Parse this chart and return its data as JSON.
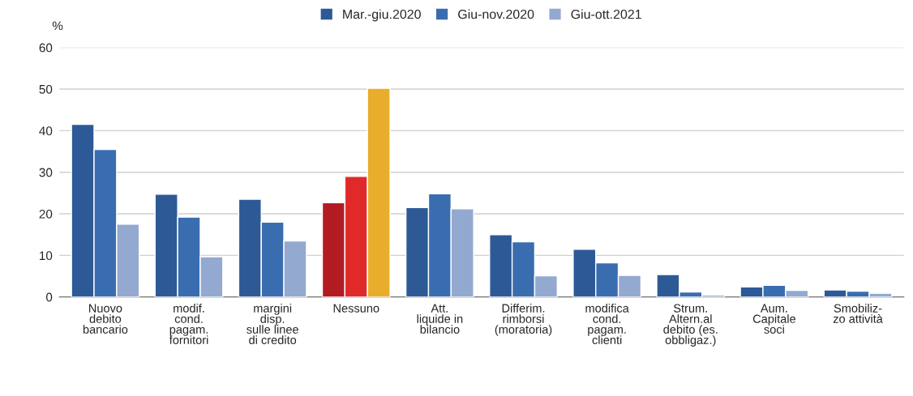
{
  "chart_data": {
    "type": "bar",
    "ylabel": "%",
    "categories": [
      "Nuovo\ndebito\nbancario",
      "modif.\ncond.\npagam.\nfornitori",
      "margini\ndisp.\nsulle linee\ndi credito",
      "Nessuno",
      "Att.\nliquide in\nbilancio",
      "Differim.\nrimborsi\n(moratoria)",
      "modifica\ncond.\npagam.\nclienti",
      "Strum.\nAltern.al\ndebito (es.\nobbligaz.)",
      "Aum.\nCapitale\nsoci",
      "Smobiliz-\nzo attività"
    ],
    "series": [
      {
        "name": "Mar.-giu.2020",
        "color": "#2d5a96",
        "colors": [
          "#2d5a96",
          "#2d5a96",
          "#2d5a96",
          "#b31b23",
          "#2d5a96",
          "#2d5a96",
          "#2d5a96",
          "#2d5a96",
          "#2d5a96",
          "#2d5a96"
        ],
        "values": [
          41.5,
          24.7,
          23.5,
          22.7,
          21.5,
          15,
          11.5,
          5.4,
          2.4,
          1.7
        ]
      },
      {
        "name": "Giu-nov.2020",
        "color": "#3a6db0",
        "colors": [
          "#3a6db0",
          "#3a6db0",
          "#3a6db0",
          "#e02a2a",
          "#3a6db0",
          "#3a6db0",
          "#3a6db0",
          "#3a6db0",
          "#3a6db0",
          "#3a6db0"
        ],
        "values": [
          35.5,
          19.2,
          18,
          29,
          24.8,
          13.3,
          8.2,
          1.2,
          2.8,
          1.4
        ]
      },
      {
        "name": "Giu-ott.2021",
        "color": "#93a9d0",
        "colors": [
          "#93a9d0",
          "#93a9d0",
          "#93a9d0",
          "#e8ad2a",
          "#93a9d0",
          "#93a9d0",
          "#93a9d0",
          "#93a9d0",
          "#93a9d0",
          "#93a9d0"
        ],
        "values": [
          17.5,
          9.7,
          13.5,
          50.2,
          21.2,
          5.1,
          5.2,
          0.5,
          1.6,
          0.9
        ]
      }
    ],
    "ylim": [
      0,
      60
    ],
    "yticks": [
      0,
      10,
      20,
      30,
      40,
      50,
      60
    ],
    "grid": "y",
    "legend": "top"
  }
}
